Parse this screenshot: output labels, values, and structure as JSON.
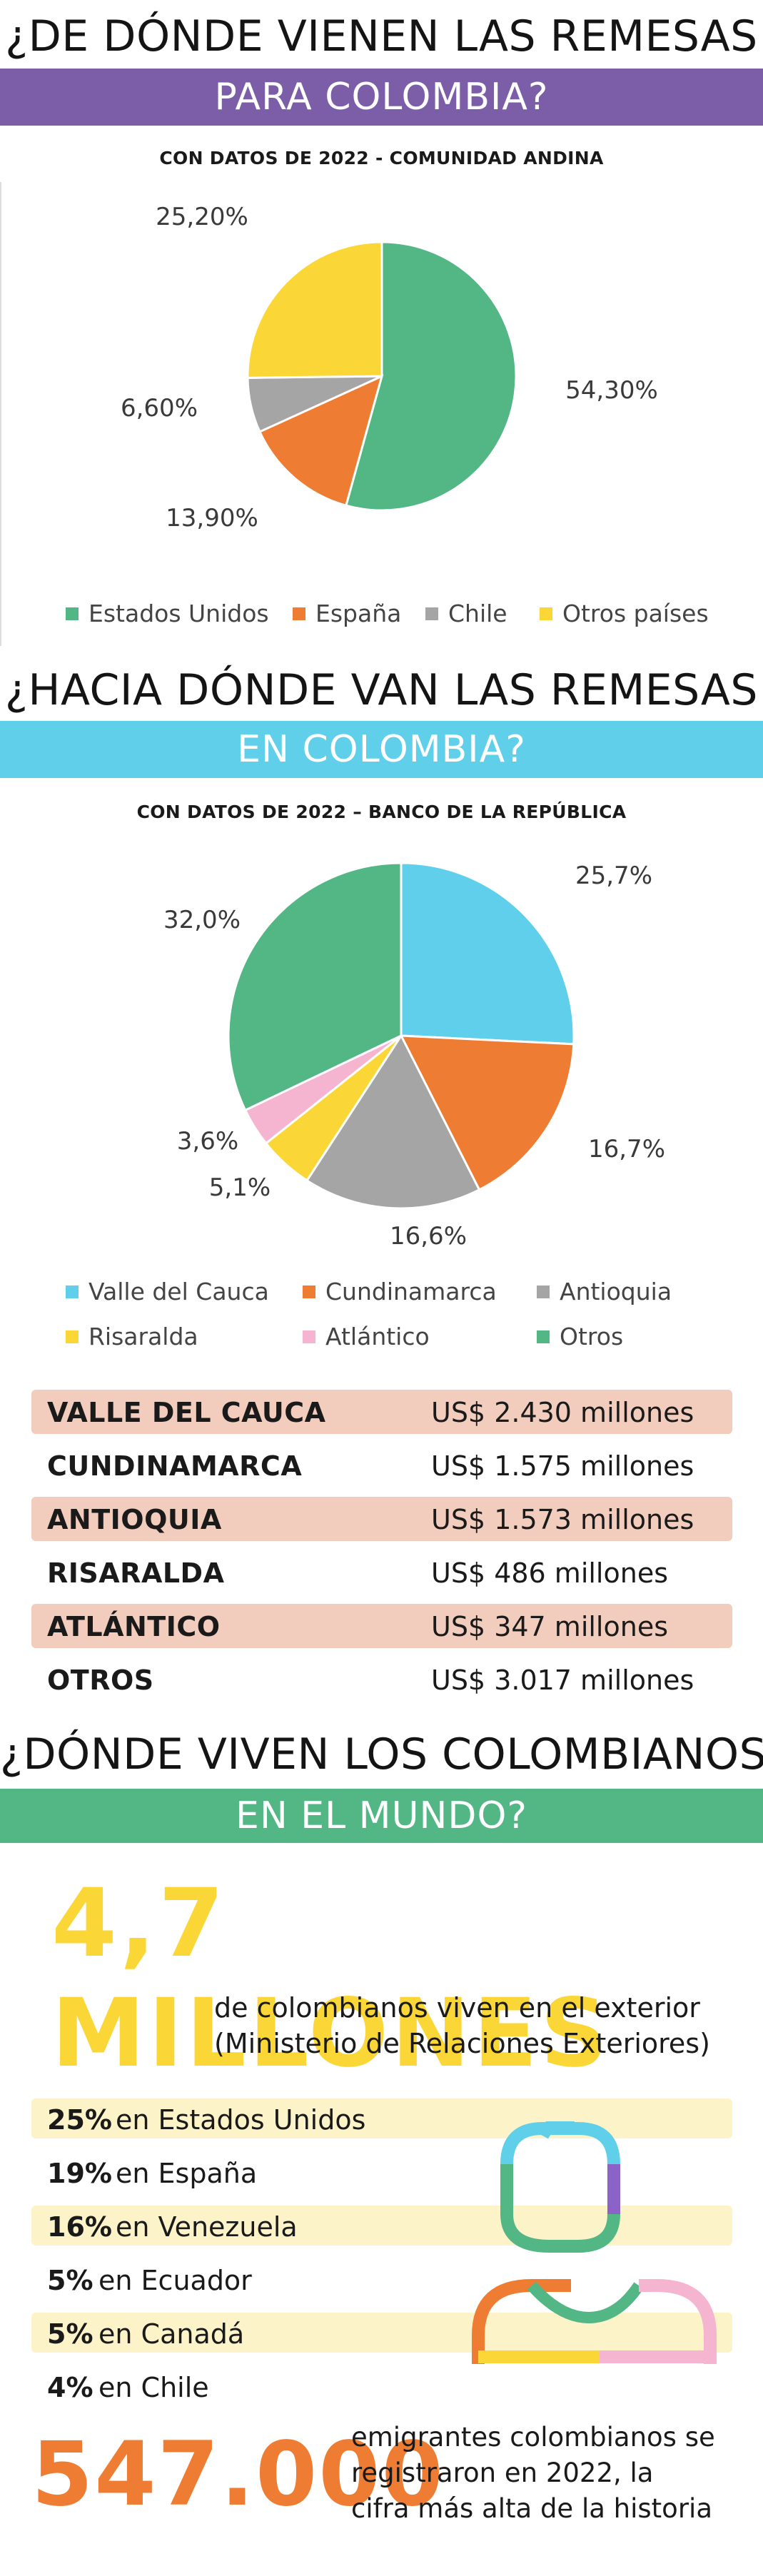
{
  "section1": {
    "title": "¿DE DÓNDE VIENEN LAS REMESAS",
    "band": "PARA COLOMBIA?",
    "band_color": "#7b5ea7",
    "subtitle": "CON DATOS DE 2022 - COMUNIDAD ANDINA"
  },
  "section2": {
    "title": "¿HACIA DÓNDE VAN LAS REMESAS",
    "band": "EN COLOMBIA?",
    "band_color": "#5fcfea",
    "subtitle": "CON DATOS DE 2022 – BANCO DE LA REPÚBLICA"
  },
  "chart_data": [
    {
      "type": "pie",
      "title": "CON DATOS DE 2022 - COMUNIDAD ANDINA",
      "categories": [
        "Estados Unidos",
        "España",
        "Chile",
        "Otros países"
      ],
      "values": [
        54.3,
        13.9,
        6.6,
        25.2
      ],
      "labels": [
        "54,30%",
        "13,90%",
        "6,60%",
        "25,20%"
      ],
      "colors": [
        "#53b685",
        "#ee7d33",
        "#a5a5a5",
        "#fbd637"
      ],
      "legend": "bottom"
    },
    {
      "type": "pie",
      "title": "CON DATOS DE 2022 – BANCO DE LA REPÚBLICA",
      "categories": [
        "Valle del Cauca",
        "Cundinamarca",
        "Antioquia",
        "Risaralda",
        "Atlántico",
        "Otros"
      ],
      "values": [
        25.7,
        16.7,
        16.6,
        5.1,
        3.6,
        32.0
      ],
      "labels": [
        "25,7%",
        "16,7%",
        "16,6%",
        "5,1%",
        "3,6%",
        "32,0%"
      ],
      "colors": [
        "#60cfeb",
        "#ee7d33",
        "#a5a5a5",
        "#fbd637",
        "#f5b4cf",
        "#53b685"
      ],
      "legend": "bottom"
    }
  ],
  "amounts": [
    {
      "name": "VALLE DEL CAUCA",
      "amount": "US$ 2.430 millones",
      "highlight": true
    },
    {
      "name": "CUNDINAMARCA",
      "amount": "US$ 1.575 millones",
      "highlight": false
    },
    {
      "name": "ANTIOQUIA",
      "amount": "US$ 1.573 millones",
      "highlight": true
    },
    {
      "name": "RISARALDA",
      "amount": "US$ 486 millones",
      "highlight": false
    },
    {
      "name": "ATLÁNTICO",
      "amount": "US$ 347 millones",
      "highlight": true
    },
    {
      "name": "OTROS",
      "amount": "US$ 3.017 millones",
      "highlight": false
    }
  ],
  "section3": {
    "title": "¿DÓNDE VIVEN LOS COLOMBIANOS",
    "band": "EN EL MUNDO?",
    "band_color": "#53b685",
    "big_number": "4,7 MILLONES",
    "big_number_color": "#fbd637",
    "big_caption_1": "de colombianos viven en el exterior",
    "big_caption_2": "(Ministerio de Relaciones Exteriores)",
    "countries": [
      {
        "pct": "25%",
        "country": "en Estados Unidos",
        "highlight": true
      },
      {
        "pct": "19%",
        "country": "en España",
        "highlight": false
      },
      {
        "pct": "16%",
        "country": "en Venezuela",
        "highlight": true
      },
      {
        "pct": "5%",
        "country": "en Ecuador",
        "highlight": false
      },
      {
        "pct": "5%",
        "country": "en Canadá",
        "highlight": true
      },
      {
        "pct": "4%",
        "country": "en Chile",
        "highlight": false
      }
    ],
    "emigrants_number": "547.000",
    "emigrants_color": "#ee7d33",
    "emigrants_caption_1": "emigrantes colombianos se",
    "emigrants_caption_2": "registraron en 2022, la",
    "emigrants_caption_3": "cifra más alta de la historia"
  }
}
